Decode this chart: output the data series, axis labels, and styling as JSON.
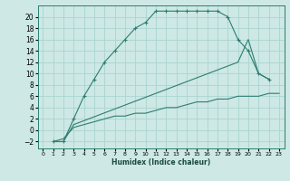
{
  "xlabel": "Humidex (Indice chaleur)",
  "bg_color": "#cde8e5",
  "grid_color": "#aad4d0",
  "line_color": "#2e7d70",
  "xlim": [
    -0.5,
    23.5
  ],
  "ylim": [
    -3.2,
    22
  ],
  "xticks": [
    0,
    1,
    2,
    3,
    4,
    5,
    6,
    7,
    8,
    9,
    10,
    11,
    12,
    13,
    14,
    15,
    16,
    17,
    18,
    19,
    20,
    21,
    22,
    23
  ],
  "yticks": [
    -2,
    0,
    2,
    4,
    6,
    8,
    10,
    12,
    14,
    16,
    18,
    20
  ],
  "series1_x": [
    1,
    2,
    3,
    4,
    5,
    6,
    7,
    8,
    9,
    10,
    11,
    12,
    13,
    14,
    15,
    16,
    17,
    18,
    19,
    20,
    21,
    22
  ],
  "series1_y": [
    -2,
    -2,
    2,
    6,
    9,
    12,
    14,
    16,
    18,
    19,
    21,
    21,
    21,
    21,
    21,
    21,
    21,
    20,
    16,
    14,
    10,
    9
  ],
  "series2_x": [
    1,
    2,
    3,
    4,
    5,
    6,
    7,
    8,
    9,
    10,
    11,
    12,
    13,
    14,
    15,
    16,
    17,
    18,
    19,
    20,
    21,
    22,
    23
  ],
  "series2_y": [
    -2,
    -1.5,
    0.5,
    1,
    1.5,
    2,
    2.5,
    2.5,
    3,
    3,
    3.5,
    4,
    4,
    4.5,
    5,
    5,
    5.5,
    5.5,
    6,
    6,
    6,
    6.5,
    6.5
  ],
  "series3_x": [
    1,
    2,
    3,
    19,
    20,
    21,
    22
  ],
  "series3_y": [
    -2,
    -2,
    1,
    12,
    16,
    10,
    9
  ]
}
